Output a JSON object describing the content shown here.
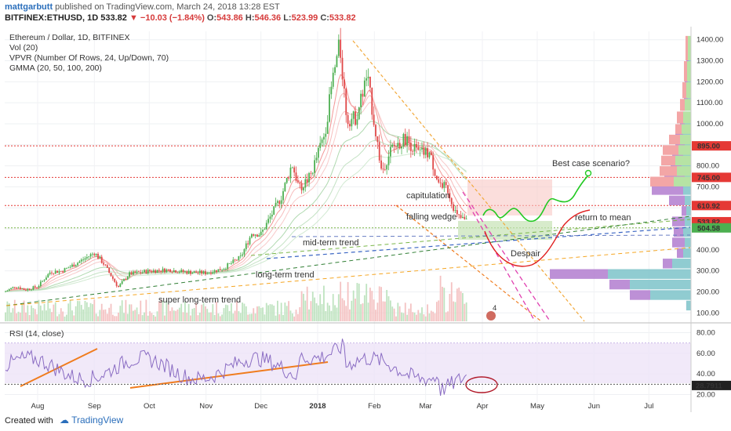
{
  "header": {
    "author": "mattgarbutt",
    "published_text": "published on TradingView.com, March 24, 2018 13:28 EST",
    "symbol": "BITFINEX:ETHUSD, 1D",
    "last": "533.82",
    "change": "▼ −10.03 (−1.84%)",
    "o_label": "O:",
    "o": "543.86",
    "h_label": "H:",
    "h": "546.36",
    "l_label": "L:",
    "l": "523.99",
    "c_label": "C:",
    "c": "533.82"
  },
  "indicators": {
    "title": "Ethereum / Dollar, 1D, BITFINEX",
    "vol": "Vol (20)",
    "vpvr": "VPVR (Number Of Rows, 24, Up/Down, 70)",
    "gmma": "GMMA (20, 50, 100, 200)",
    "rsi": "RSI (14, close)"
  },
  "footer": {
    "created": "Created with",
    "brand": "TradingView"
  },
  "colors": {
    "up": "#4caf50",
    "down": "#e04848",
    "orange": "#f07c1e",
    "vpvr_up": "#7cc3c9",
    "vpvr_down": "#b27ccf",
    "red_line": "#e53935"
  },
  "chart_data": {
    "type": "candlestick",
    "title": "Ethereum / Dollar, 1D, BITFINEX",
    "x_ticks": [
      "Aug",
      "Sep",
      "Oct",
      "Nov",
      "Dec",
      "2018",
      "Feb",
      "Mar",
      "Apr",
      "May",
      "Jun",
      "Jul"
    ],
    "y_ticks": [
      100,
      200,
      300,
      400,
      500,
      600,
      700,
      800,
      900,
      1000,
      1100,
      1200,
      1300,
      1400
    ],
    "ylim": [
      60,
      1440
    ],
    "rsi_ticks": [
      20,
      40,
      60,
      80
    ],
    "rsi_ylim": [
      12,
      88
    ],
    "price_labels": [
      {
        "value": 895.0,
        "text": "895.00",
        "color": "#e53935"
      },
      {
        "value": 745.0,
        "text": "745.00",
        "color": "#e53935"
      },
      {
        "value": 610.92,
        "text": "610.92",
        "color": "#e53935"
      },
      {
        "value": 533.82,
        "text": "533.82",
        "color": "#e53935"
      },
      {
        "value": 504.58,
        "text": "504.58",
        "color": "#4caf50"
      }
    ],
    "rsi_label": "28.7911",
    "rsi_last": 28.79,
    "horizontal_levels": [
      895,
      745,
      610.92
    ],
    "close_path": [
      [
        "2017-07-14",
        200
      ],
      [
        "2017-07-20",
        228
      ],
      [
        "2017-07-25",
        210
      ],
      [
        "2017-08-01",
        225
      ],
      [
        "2017-08-08",
        296
      ],
      [
        "2017-08-14",
        299
      ],
      [
        "2017-08-21",
        330
      ],
      [
        "2017-08-28",
        365
      ],
      [
        "2017-09-01",
        387
      ],
      [
        "2017-09-06",
        335
      ],
      [
        "2017-09-14",
        222
      ],
      [
        "2017-09-20",
        285
      ],
      [
        "2017-10-01",
        300
      ],
      [
        "2017-10-12",
        305
      ],
      [
        "2017-10-20",
        295
      ],
      [
        "2017-11-01",
        290
      ],
      [
        "2017-11-10",
        310
      ],
      [
        "2017-11-20",
        365
      ],
      [
        "2017-11-26",
        480
      ],
      [
        "2017-12-01",
        475
      ],
      [
        "2017-12-12",
        650
      ],
      [
        "2017-12-18",
        810
      ],
      [
        "2017-12-22",
        690
      ],
      [
        "2017-12-28",
        750
      ],
      [
        "2018-01-05",
        960
      ],
      [
        "2018-01-09",
        1200
      ],
      [
        "2018-01-13",
        1380
      ],
      [
        "2018-01-17",
        1020
      ],
      [
        "2018-01-22",
        1030
      ],
      [
        "2018-01-28",
        1230
      ],
      [
        "2018-02-05",
        770
      ],
      [
        "2018-02-10",
        880
      ],
      [
        "2018-02-18",
        930
      ],
      [
        "2018-02-25",
        860
      ],
      [
        "2018-03-03",
        860
      ],
      [
        "2018-03-08",
        720
      ],
      [
        "2018-03-13",
        690
      ],
      [
        "2018-03-18",
        560
      ],
      [
        "2018-03-24",
        533.82
      ]
    ],
    "annotations": [
      "Best case scenario?",
      "capitulation",
      "falling wedge",
      "return to mean",
      "Despair",
      "mid-term trend",
      "long-term trend",
      "super long-term trend"
    ]
  }
}
